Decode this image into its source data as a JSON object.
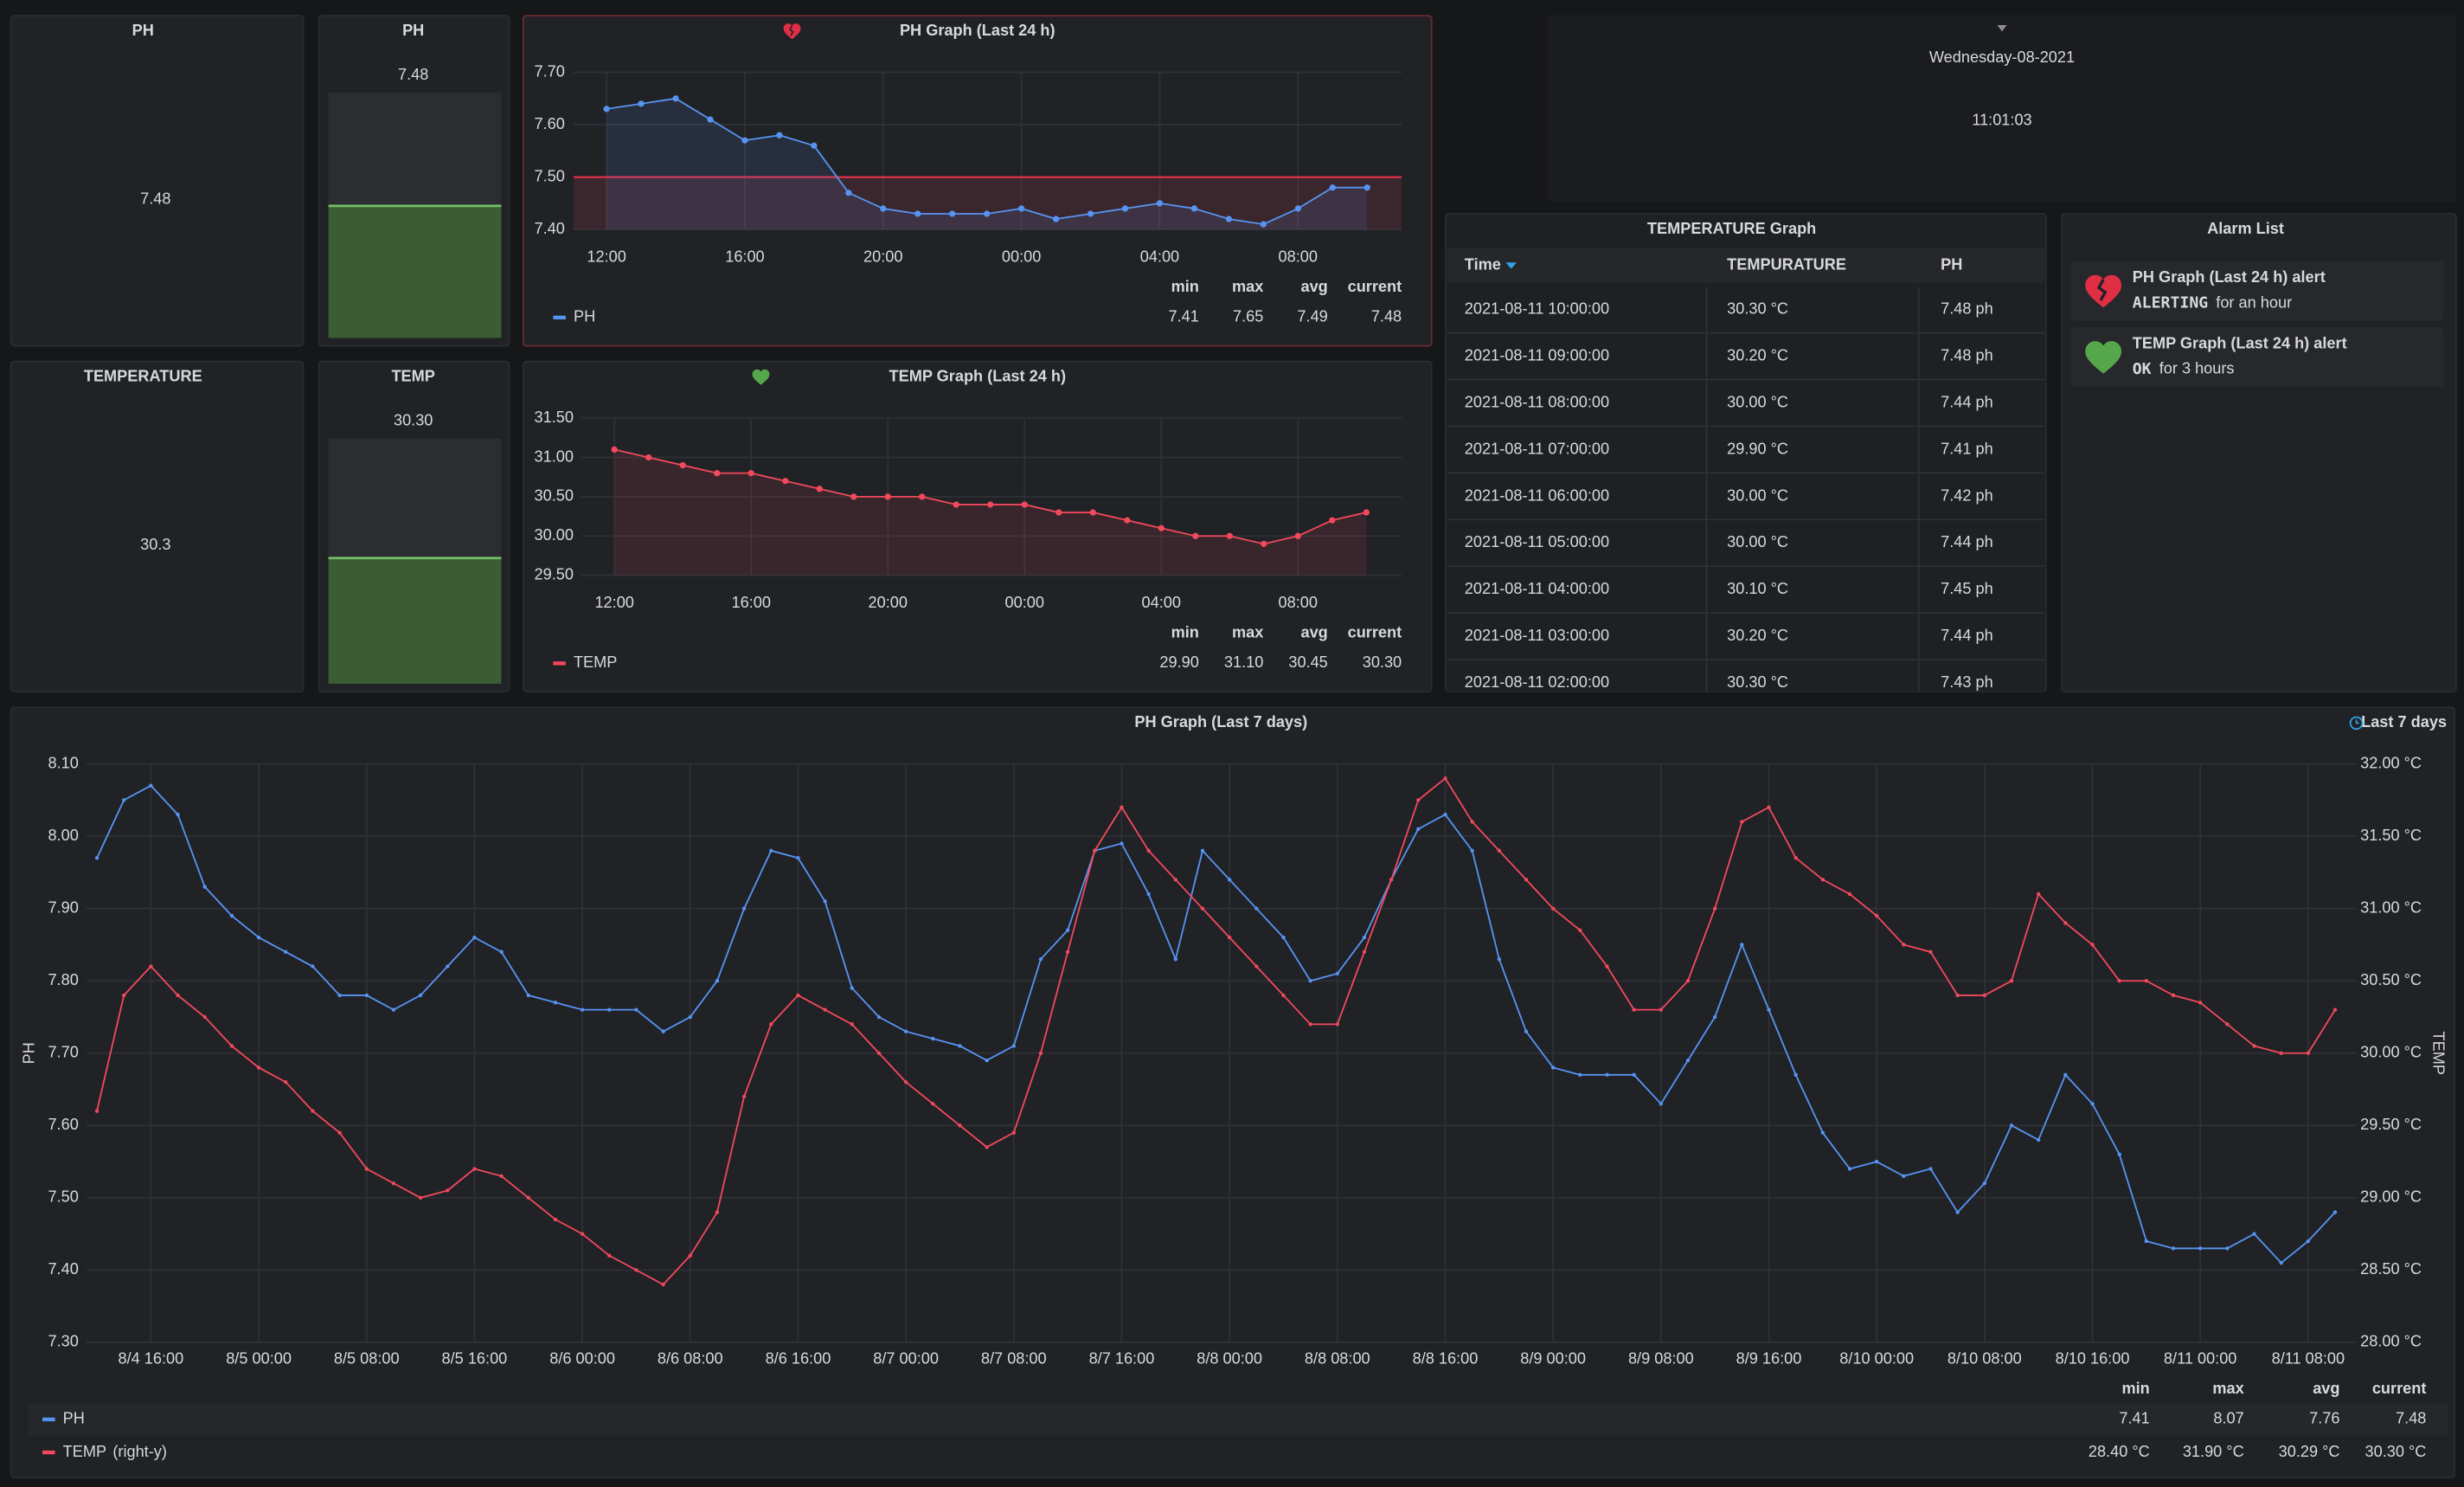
{
  "stat_panels": [
    {
      "title": "PH",
      "value": "7.48"
    },
    {
      "title": "TEMPERATURE",
      "value": "30.3"
    }
  ],
  "gauge_panels": [
    {
      "title": "PH",
      "value": "7.48"
    },
    {
      "title": "TEMP",
      "value": "30.30"
    }
  ],
  "clock": {
    "date": "Wednesday-08-2021",
    "time": "11:01:03"
  },
  "table": {
    "title": "TEMPERATURE Graph",
    "columns": [
      "Time",
      "TEMPURATURE",
      "PH"
    ],
    "rows": [
      [
        "2021-08-11 10:00:00",
        "30.30 °C",
        "7.48 ph"
      ],
      [
        "2021-08-11 09:00:00",
        "30.20 °C",
        "7.48 ph"
      ],
      [
        "2021-08-11 08:00:00",
        "30.00 °C",
        "7.44 ph"
      ],
      [
        "2021-08-11 07:00:00",
        "29.90 °C",
        "7.41 ph"
      ],
      [
        "2021-08-11 06:00:00",
        "30.00 °C",
        "7.42 ph"
      ],
      [
        "2021-08-11 05:00:00",
        "30.00 °C",
        "7.44 ph"
      ],
      [
        "2021-08-11 04:00:00",
        "30.10 °C",
        "7.45 ph"
      ],
      [
        "2021-08-11 03:00:00",
        "30.20 °C",
        "7.44 ph"
      ],
      [
        "2021-08-11 02:00:00",
        "30.30 °C",
        "7.43 ph"
      ]
    ]
  },
  "alarms": {
    "title": "Alarm List",
    "items": [
      {
        "name": "PH Graph (Last 24 h) alert",
        "state": "ALERTING",
        "duration": "for an hour"
      },
      {
        "name": "TEMP Graph (Last 24 h) alert",
        "state": "OK",
        "duration": "for 3 hours"
      }
    ]
  },
  "chart_data": [
    {
      "type": "line",
      "title": "PH Graph (Last 24 h)",
      "x": [
        "12:00",
        "13:00",
        "14:00",
        "15:00",
        "16:00",
        "17:00",
        "18:00",
        "19:00",
        "20:00",
        "21:00",
        "22:00",
        "23:00",
        "00:00",
        "01:00",
        "02:00",
        "03:00",
        "04:00",
        "05:00",
        "06:00",
        "07:00",
        "08:00",
        "09:00",
        "10:00"
      ],
      "xticks": [
        "12:00",
        "16:00",
        "20:00",
        "00:00",
        "04:00",
        "08:00"
      ],
      "ylim": [
        7.4,
        7.7
      ],
      "yticks": [
        {
          "value": 7.4,
          "label": "7.40"
        },
        {
          "value": 7.5,
          "label": "7.50"
        },
        {
          "value": 7.6,
          "label": "7.60"
        },
        {
          "value": 7.7,
          "label": "7.70"
        }
      ],
      "threshold": 7.5,
      "grid": true,
      "legend_columns": [
        "min",
        "max",
        "avg",
        "current"
      ],
      "series": [
        {
          "name": "PH",
          "color": "#5794f2",
          "values": [
            7.63,
            7.64,
            7.65,
            7.61,
            7.57,
            7.58,
            7.56,
            7.47,
            7.44,
            7.43,
            7.43,
            7.43,
            7.44,
            7.42,
            7.43,
            7.44,
            7.45,
            7.44,
            7.42,
            7.41,
            7.44,
            7.48,
            7.48
          ],
          "stats": [
            "7.41",
            "7.65",
            "7.49",
            "7.48"
          ]
        }
      ]
    },
    {
      "type": "line",
      "title": "TEMP Graph (Last 24 h)",
      "x": [
        "12:00",
        "13:00",
        "14:00",
        "15:00",
        "16:00",
        "17:00",
        "18:00",
        "19:00",
        "20:00",
        "21:00",
        "22:00",
        "23:00",
        "00:00",
        "01:00",
        "02:00",
        "03:00",
        "04:00",
        "05:00",
        "06:00",
        "07:00",
        "08:00",
        "09:00",
        "10:00"
      ],
      "xticks": [
        "12:00",
        "16:00",
        "20:00",
        "00:00",
        "04:00",
        "08:00"
      ],
      "ylim": [
        29.5,
        31.5
      ],
      "yticks": [
        {
          "value": 29.5,
          "label": "29.50"
        },
        {
          "value": 30,
          "label": "30.00"
        },
        {
          "value": 30.5,
          "label": "30.50"
        },
        {
          "value": 31,
          "label": "31.00"
        },
        {
          "value": 31.5,
          "label": "31.50"
        }
      ],
      "grid": true,
      "legend_columns": [
        "min",
        "max",
        "avg",
        "current"
      ],
      "series": [
        {
          "name": "TEMP",
          "color": "#f2495c",
          "values": [
            31.1,
            31.0,
            30.9,
            30.8,
            30.8,
            30.7,
            30.6,
            30.5,
            30.5,
            30.5,
            30.4,
            30.4,
            30.4,
            30.3,
            30.3,
            30.2,
            30.1,
            30.0,
            30.0,
            29.9,
            30.0,
            30.2,
            30.3
          ],
          "stats": [
            "29.90",
            "31.10",
            "30.45",
            "30.30"
          ]
        }
      ]
    },
    {
      "type": "line",
      "title": "PH Graph (Last 7 days)",
      "time_range": "Last 7 days",
      "ylabel": "PH",
      "y2label": "TEMP",
      "x": [
        "8/4 12:00",
        "8/4 14:00",
        "8/4 16:00",
        "8/4 18:00",
        "8/4 20:00",
        "8/4 22:00",
        "8/5 00:00",
        "8/5 02:00",
        "8/5 04:00",
        "8/5 06:00",
        "8/5 08:00",
        "8/5 10:00",
        "8/5 12:00",
        "8/5 14:00",
        "8/5 16:00",
        "8/5 18:00",
        "8/5 20:00",
        "8/5 22:00",
        "8/6 00:00",
        "8/6 02:00",
        "8/6 04:00",
        "8/6 06:00",
        "8/6 08:00",
        "8/6 10:00",
        "8/6 12:00",
        "8/6 14:00",
        "8/6 16:00",
        "8/6 18:00",
        "8/6 20:00",
        "8/6 22:00",
        "8/7 00:00",
        "8/7 02:00",
        "8/7 04:00",
        "8/7 06:00",
        "8/7 08:00",
        "8/7 10:00",
        "8/7 12:00",
        "8/7 14:00",
        "8/7 16:00",
        "8/7 18:00",
        "8/7 20:00",
        "8/7 22:00",
        "8/8 00:00",
        "8/8 02:00",
        "8/8 04:00",
        "8/8 06:00",
        "8/8 08:00",
        "8/8 10:00",
        "8/8 12:00",
        "8/8 14:00",
        "8/8 16:00",
        "8/8 18:00",
        "8/8 20:00",
        "8/8 22:00",
        "8/9 00:00",
        "8/9 02:00",
        "8/9 04:00",
        "8/9 06:00",
        "8/9 08:00",
        "8/9 10:00",
        "8/9 12:00",
        "8/9 14:00",
        "8/9 16:00",
        "8/9 18:00",
        "8/9 20:00",
        "8/9 22:00",
        "8/10 00:00",
        "8/10 02:00",
        "8/10 04:00",
        "8/10 06:00",
        "8/10 08:00",
        "8/10 10:00",
        "8/10 12:00",
        "8/10 14:00",
        "8/10 16:00",
        "8/10 18:00",
        "8/10 20:00",
        "8/10 22:00",
        "8/11 00:00",
        "8/11 02:00",
        "8/11 04:00",
        "8/11 06:00",
        "8/11 08:00",
        "8/11 10:00"
      ],
      "xticks": [
        "8/4 16:00",
        "8/5 00:00",
        "8/5 08:00",
        "8/5 16:00",
        "8/6 00:00",
        "8/6 08:00",
        "8/6 16:00",
        "8/7 00:00",
        "8/7 08:00",
        "8/7 16:00",
        "8/8 00:00",
        "8/8 08:00",
        "8/8 16:00",
        "8/9 00:00",
        "8/9 08:00",
        "8/9 16:00",
        "8/10 00:00",
        "8/10 08:00",
        "8/10 16:00",
        "8/11 00:00",
        "8/11 08:00"
      ],
      "ylim": [
        7.3,
        8.1
      ],
      "yticks": [
        {
          "value": 7.3,
          "label": "7.30"
        },
        {
          "value": 7.4,
          "label": "7.40"
        },
        {
          "value": 7.5,
          "label": "7.50"
        },
        {
          "value": 7.6,
          "label": "7.60"
        },
        {
          "value": 7.7,
          "label": "7.70"
        },
        {
          "value": 7.8,
          "label": "7.80"
        },
        {
          "value": 7.9,
          "label": "7.90"
        },
        {
          "value": 8,
          "label": "8.00"
        },
        {
          "value": 8.1,
          "label": "8.10"
        }
      ],
      "y2lim": [
        28,
        32
      ],
      "y2ticks": [
        {
          "value": 28,
          "label": "28.00 °C"
        },
        {
          "value": 28.5,
          "label": "28.50 °C"
        },
        {
          "value": 29,
          "label": "29.00 °C"
        },
        {
          "value": 29.5,
          "label": "29.50 °C"
        },
        {
          "value": 30,
          "label": "30.00 °C"
        },
        {
          "value": 30.5,
          "label": "30.50 °C"
        },
        {
          "value": 31,
          "label": "31.00 °C"
        },
        {
          "value": 31.5,
          "label": "31.50 °C"
        },
        {
          "value": 32,
          "label": "32.00 °C"
        }
      ],
      "grid": true,
      "legend_columns": [
        "min",
        "max",
        "avg",
        "current"
      ],
      "series": [
        {
          "name": "PH",
          "color": "#5794f2",
          "axis": "y",
          "values": [
            7.97,
            8.05,
            8.07,
            8.03,
            7.93,
            7.89,
            7.86,
            7.84,
            7.82,
            7.78,
            7.78,
            7.76,
            7.78,
            7.82,
            7.86,
            7.84,
            7.78,
            7.77,
            7.76,
            7.76,
            7.76,
            7.73,
            7.75,
            7.8,
            7.9,
            7.98,
            7.97,
            7.91,
            7.79,
            7.75,
            7.73,
            7.72,
            7.71,
            7.69,
            7.71,
            7.83,
            7.87,
            7.98,
            7.99,
            7.92,
            7.83,
            7.98,
            7.94,
            7.9,
            7.86,
            7.8,
            7.81,
            7.86,
            7.94,
            8.01,
            8.03,
            7.98,
            7.83,
            7.73,
            7.68,
            7.67,
            7.67,
            7.67,
            7.63,
            7.69,
            7.75,
            7.85,
            7.76,
            7.67,
            7.59,
            7.54,
            7.55,
            7.53,
            7.54,
            7.48,
            7.52,
            7.6,
            7.58,
            7.67,
            7.63,
            7.56,
            7.44,
            7.43,
            7.43,
            7.43,
            7.45,
            7.41,
            7.44,
            7.48
          ],
          "stats": [
            "7.41",
            "8.07",
            "7.76",
            "7.48"
          ]
        },
        {
          "name": "TEMP",
          "legend_suffix": "(right-y)",
          "color": "#f2495c",
          "axis": "y2",
          "values": [
            29.6,
            30.4,
            30.6,
            30.4,
            30.25,
            30.05,
            29.9,
            29.8,
            29.6,
            29.45,
            29.2,
            29.1,
            29.0,
            29.05,
            29.2,
            29.15,
            29.0,
            28.85,
            28.75,
            28.6,
            28.5,
            28.4,
            28.6,
            28.9,
            29.7,
            30.2,
            30.4,
            30.3,
            30.2,
            30.0,
            29.8,
            29.65,
            29.5,
            29.35,
            29.45,
            30.0,
            30.7,
            31.4,
            31.7,
            31.4,
            31.2,
            31.0,
            30.8,
            30.6,
            30.4,
            30.2,
            30.2,
            30.7,
            31.2,
            31.75,
            31.9,
            31.6,
            31.4,
            31.2,
            31.0,
            30.85,
            30.6,
            30.3,
            30.3,
            30.5,
            31.0,
            31.6,
            31.7,
            31.35,
            31.2,
            31.1,
            30.95,
            30.75,
            30.7,
            30.4,
            30.4,
            30.5,
            31.1,
            30.9,
            30.75,
            30.5,
            30.5,
            30.4,
            30.35,
            30.2,
            30.05,
            30.0,
            30.0,
            30.3
          ],
          "stats": [
            "28.40 °C",
            "31.90 °C",
            "30.29 °C",
            "30.30 °C"
          ]
        }
      ]
    }
  ]
}
